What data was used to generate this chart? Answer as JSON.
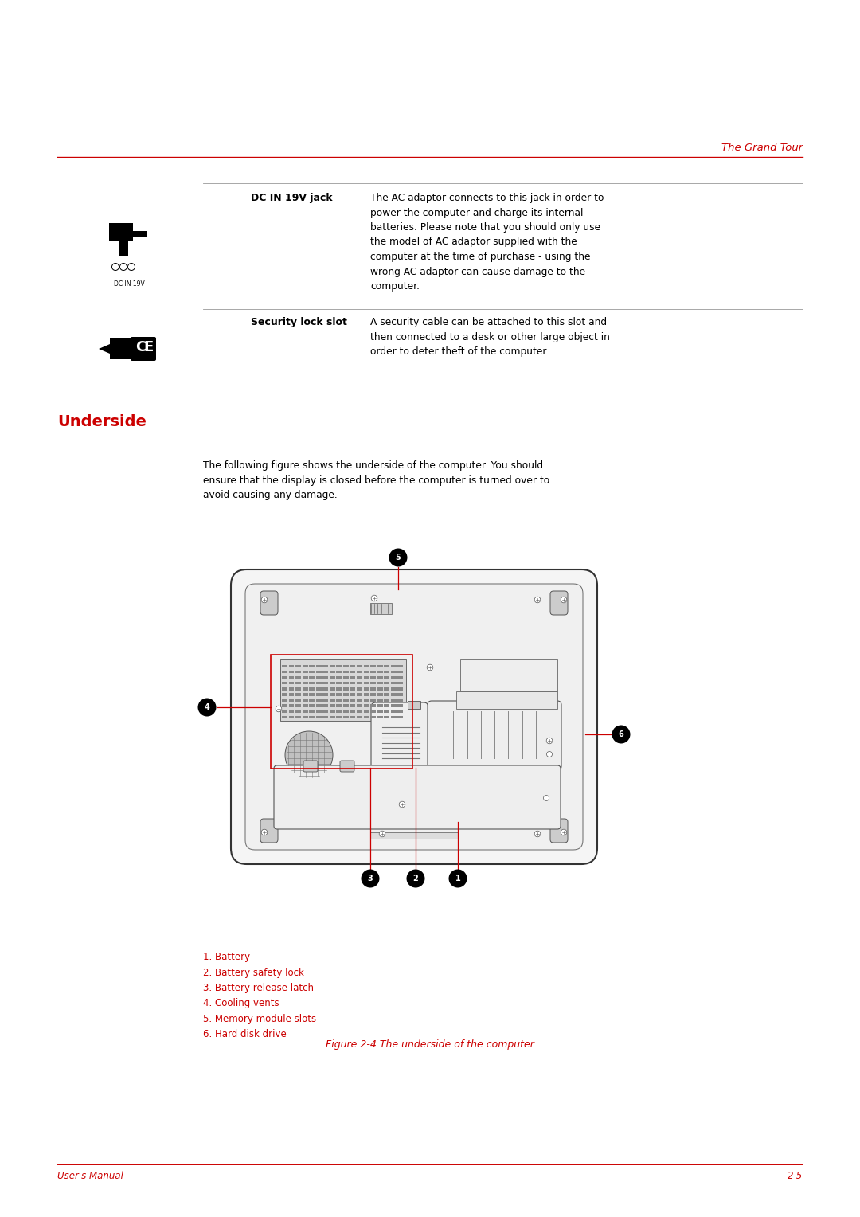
{
  "page_bg": "#ffffff",
  "header_text": "The Grand Tour",
  "header_color": "#cc0000",
  "section_title": "Underside",
  "section_title_color": "#cc0000",
  "row1_label": "DC IN 19V jack",
  "row1_icon_label": "DC IN 19V",
  "row1_desc": "The AC adaptor connects to this jack in order to\npower the computer and charge its internal\nbatteries. Please note that you should only use\nthe model of AC adaptor supplied with the\ncomputer at the time of purchase - using the\nwrong AC adaptor can cause damage to the\ncomputer.",
  "row2_label": "Security lock slot",
  "row2_desc": "A security cable can be attached to this slot and\nthen connected to a desk or other large object in\norder to deter theft of the computer.",
  "section_body": "The following figure shows the underside of the computer. You should\nensure that the display is closed before the computer is turned over to\navoid causing any damage.",
  "legend_items": [
    "1. Battery",
    "2. Battery safety lock",
    "3. Battery release latch",
    "4. Cooling vents",
    "5. Memory module slots",
    "6. Hard disk drive"
  ],
  "legend_color": "#cc0000",
  "figure_caption": "Figure 2-4 The underside of the computer",
  "figure_caption_color": "#cc0000",
  "footer_left": "User's Manual",
  "footer_right": "2-5",
  "footer_color": "#cc0000",
  "text_color": "#000000",
  "line_color": "#999999",
  "red_line_color": "#cc0000"
}
